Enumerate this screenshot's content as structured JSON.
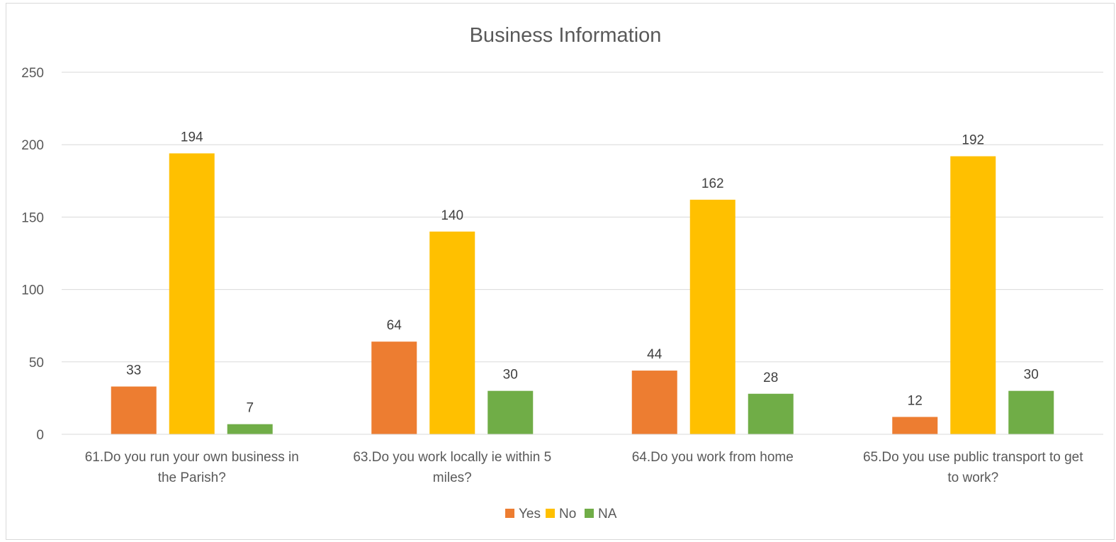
{
  "chart_data": {
    "type": "bar",
    "title": "Business Information",
    "categories": [
      [
        "61.Do you run your own business in",
        "the Parish?"
      ],
      [
        "63.Do you work locally ie within 5",
        "miles?"
      ],
      [
        "64.Do you work from home"
      ],
      [
        "65.Do you use public transport to get",
        "to work?"
      ]
    ],
    "series": [
      {
        "name": "Yes",
        "color": "#ED7D31",
        "values": [
          33,
          64,
          44,
          12
        ]
      },
      {
        "name": "No",
        "color": "#FFC000",
        "values": [
          194,
          140,
          162,
          192
        ]
      },
      {
        "name": "NA",
        "color": "#70AD47",
        "values": [
          7,
          30,
          28,
          30
        ]
      }
    ],
    "ylim": [
      0,
      250
    ],
    "yticks": [
      0,
      50,
      100,
      150,
      200,
      250
    ],
    "grid": true,
    "legend": "bottom",
    "data_labels": true
  }
}
